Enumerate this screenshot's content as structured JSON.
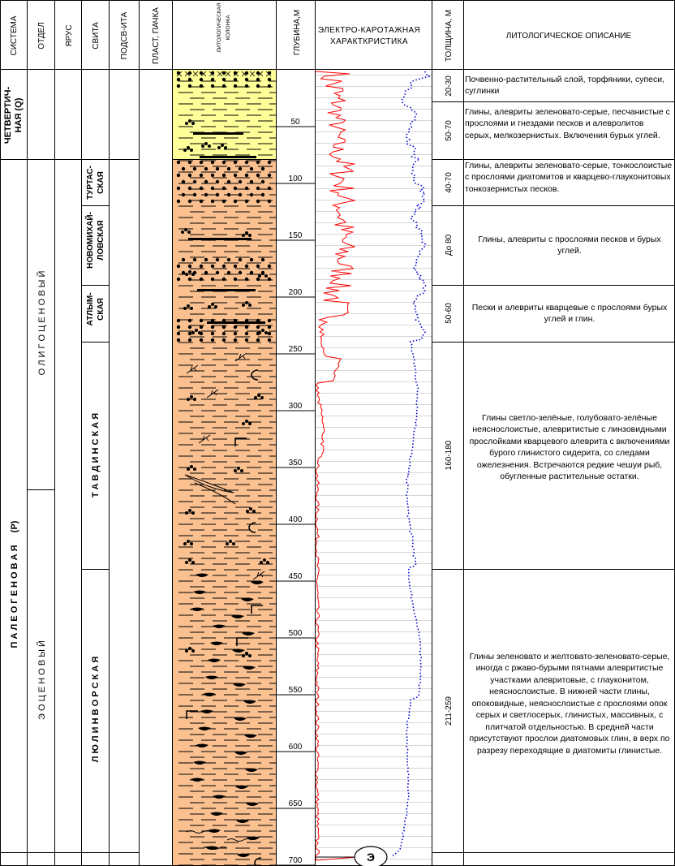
{
  "headers": {
    "system": "СИСТЕМА",
    "department": "ОТДЕЛ",
    "stage": "ЯРУС",
    "suite": "СВИТА",
    "subsuite": "ПОДСВ-ИТА",
    "layer": "ПЛАСТ, ПАЧКА",
    "lithology_column": [
      "ЛИТОЛОГИЧЕСКАЯ",
      "КОЛОНКА"
    ],
    "depth": "ГЛУБИНА,М",
    "electro": [
      "ЭЛЕКТРО-КАРОТАЖНАЯ",
      "ХАРАКТКРИСТИКА"
    ],
    "thickness": "ТОЛЩИНА, М",
    "description": "ЛИТОЛОГИЧЕСКОЕ ОПИСАНИЕ"
  },
  "systems": {
    "quaternary": [
      "ЧЕТВЕРТИЧ-",
      "НАЯ (Q)"
    ],
    "paleogene": "П А Л Е О Г Е Н О В А Я     (Р)"
  },
  "departments": {
    "oligocene": "О Л И Г О Ц Е Н О В Ы Й",
    "eocene": "Э О Ц Е Н О В Ы Й"
  },
  "suites": {
    "turtas": [
      "ТУРТАС-",
      "СКАЯ"
    ],
    "novomikh": [
      "НОВОМИХАЙ-",
      "ЛОВСКАЯ"
    ],
    "atlym": [
      "АТЛЫМ-",
      "СКАЯ"
    ],
    "tavda": "Т А В Д И Н С К А Я",
    "lyulinvor": "Л Ю Л И Н В О Р С К А Я"
  },
  "depth_ticks": [
    "50",
    "100",
    "150",
    "200",
    "250",
    "300",
    "350",
    "400",
    "450",
    "500",
    "550",
    "600",
    "650",
    "700"
  ],
  "marker": "Э",
  "intervals": [
    {
      "thickness": "20-30",
      "align": "left",
      "text": "Почвенно-растительный слой, торфяники, супеси, суглинки"
    },
    {
      "thickness": "50-70",
      "align": "left",
      "text": "Глины, алевриты зеленовато-серые, песчанистые с прослоями и гнездами песков и алевролитов серых, мелкозернистых. Включения бурых углей."
    },
    {
      "thickness": "40-70",
      "align": "left",
      "text": "Глины, алевриты зеленовато-серые, тонкослоистые с прослоями диатомитов и кварцево-глауконитовых тонкозернистых песков."
    },
    {
      "thickness": "До 80",
      "align": "center",
      "text": "Глины, алевриты с прослоями песков и бурых углей."
    },
    {
      "thickness": "50-60",
      "align": "center",
      "text": "Пески и алевриты кварцевые с прослоями бурых углей и глин."
    },
    {
      "thickness": "160-180",
      "align": "center",
      "text": "Глины светло-зелёные, голубовато-зелёные неяснослоистые, алевритистые с линзовидными прослойками кварцевого алеврита с включениями бурого глинистого сидерита, со следами ожелезнения. Встречаются редкие чешуи рыб, обугленные растительные остатки."
    },
    {
      "thickness": "211-259",
      "align": "center",
      "text": "Глины зеленовато и желтовато-зеленовато-серые, иногда с ржаво-бурыми пятнами алевритистые участками алевритовые, с глауконитом, неяснослоистые. В нижней части глины, опоковидные, неяснослоистые с прослоями опок серых и светлосерых, глинистых, массивных, с плитчатой отдельностью. В средней части присутствуют прослои диатомовых глин, в верх по разрезу переходящие в диатомиты глинистые."
    }
  ],
  "colors": {
    "quaternary_fill": "#ffff99",
    "paleogene_fill": "#fac090",
    "sp_curve": "#ff0000",
    "resistivity_curve": "#0000cc",
    "grid": "#c0c0c0"
  }
}
